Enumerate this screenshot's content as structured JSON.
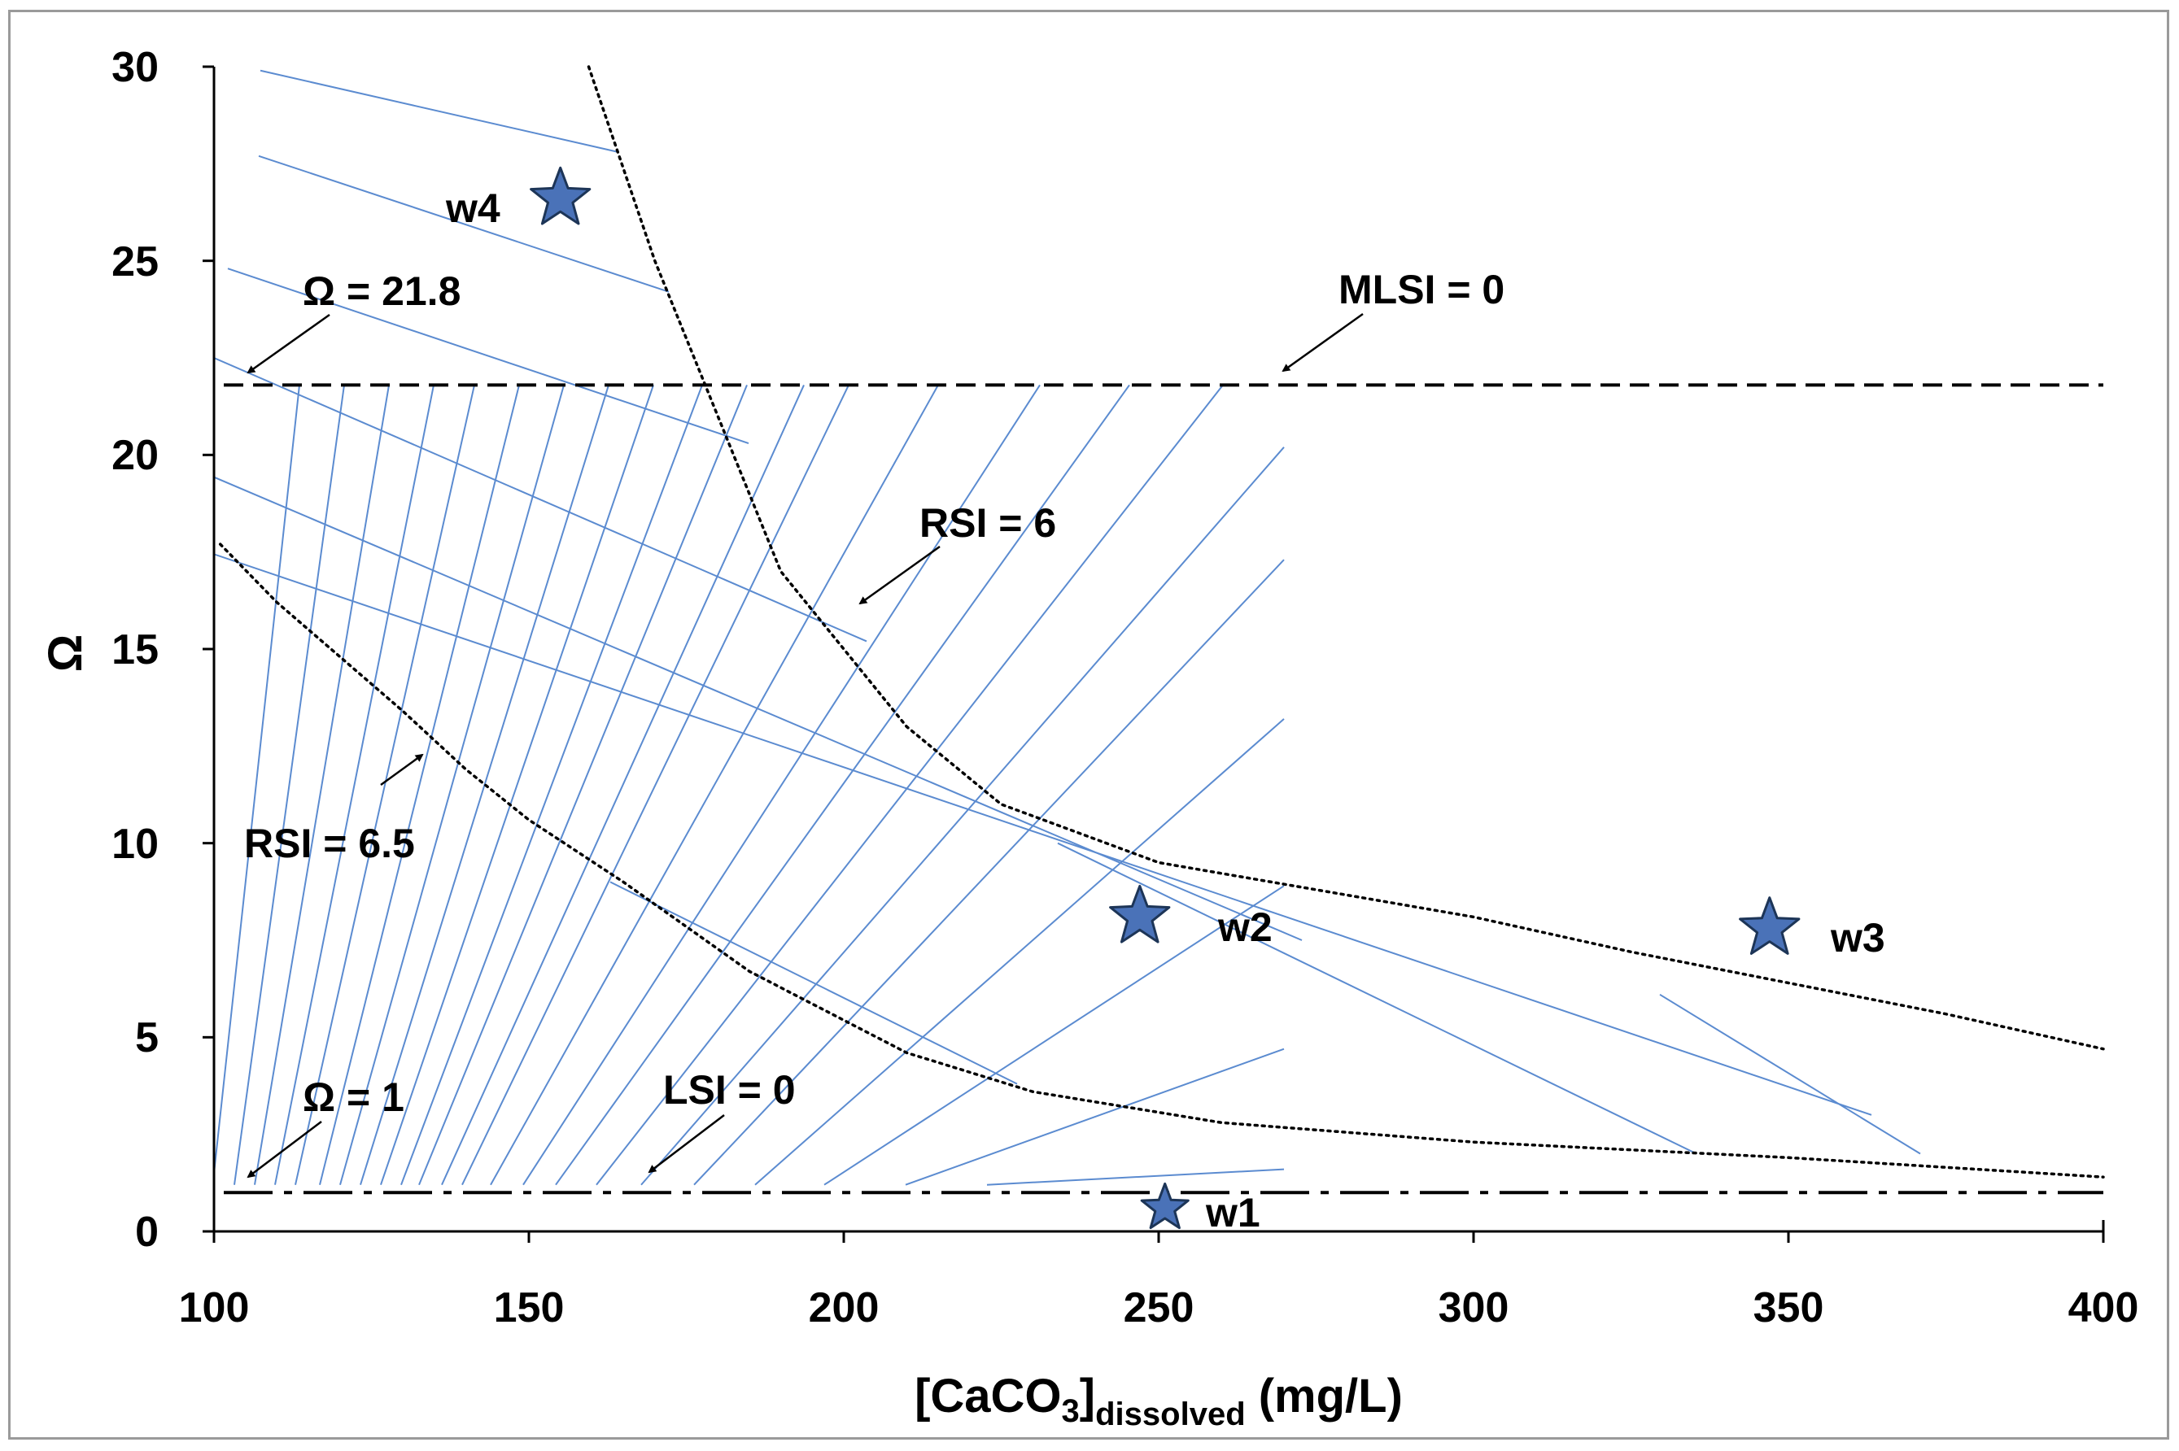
{
  "chart_data": {
    "type": "scatter",
    "xlabel": {
      "main": "[CaCO",
      "sub1": "3",
      "close": "]",
      "sub2": "dissolved",
      "unit": " (mg/L)"
    },
    "ylabel": "Ω",
    "xlim": [
      100,
      400
    ],
    "ylim": [
      0,
      30
    ],
    "x_ticks": [
      "100",
      "150",
      "200",
      "250",
      "300",
      "350",
      "400"
    ],
    "y_ticks": [
      "0",
      "5",
      "10",
      "15",
      "20",
      "25",
      "30"
    ],
    "reference_lines": [
      {
        "name": "MLSI = 0",
        "omega": 21.8,
        "style": "dashed"
      },
      {
        "name": "LSI = 0",
        "omega": 1,
        "style": "dash-dot"
      }
    ],
    "curves": [
      {
        "name": "RSI = 6",
        "style": "dotted",
        "points": [
          [
            159.5,
            30
          ],
          [
            170,
            25
          ],
          [
            180,
            21
          ],
          [
            190,
            17
          ],
          [
            200,
            15
          ],
          [
            210,
            13
          ],
          [
            225,
            11
          ],
          [
            250,
            9.5
          ],
          [
            275,
            8.8
          ],
          [
            300,
            8.1
          ],
          [
            325,
            7.2
          ],
          [
            350,
            6.4
          ],
          [
            375,
            5.6
          ],
          [
            400,
            4.7
          ]
        ]
      },
      {
        "name": "RSI = 6.5",
        "style": "dotted",
        "points": [
          [
            101,
            17.7
          ],
          [
            110,
            16.2
          ],
          [
            120,
            14.8
          ],
          [
            130,
            13.4
          ],
          [
            140,
            11.9
          ],
          [
            150,
            10.6
          ],
          [
            165,
            9
          ],
          [
            185,
            6.7
          ],
          [
            210,
            4.6
          ],
          [
            230,
            3.6
          ],
          [
            260,
            2.8
          ],
          [
            300,
            2.3
          ],
          [
            350,
            1.9
          ],
          [
            400,
            1.4
          ]
        ]
      }
    ],
    "wells": [
      {
        "name": "w1",
        "x": 251,
        "y": 0.6
      },
      {
        "name": "w2",
        "x": 247,
        "y": 8.1
      },
      {
        "name": "w3",
        "x": 347,
        "y": 7.8
      },
      {
        "name": "w4",
        "x": 155,
        "y": 26.6
      }
    ],
    "annotations": [
      {
        "label": "Ω =  21.8"
      },
      {
        "label": "MLSI = 0"
      },
      {
        "label": "RSI = 6"
      },
      {
        "label": "RSI = 6.5"
      },
      {
        "label": "Ω = 1"
      },
      {
        "label": "LSI = 0"
      }
    ],
    "colors": {
      "hatch": "#5b8bd0",
      "star_fill": "#4a72b8",
      "star_stroke": "#1d3557",
      "axis": "#000000"
    }
  }
}
